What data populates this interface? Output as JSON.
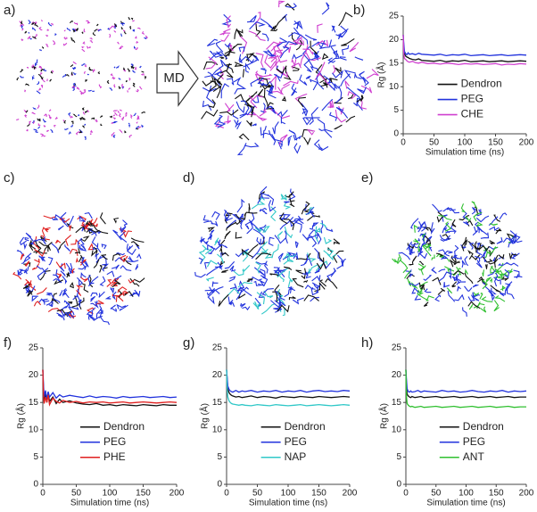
{
  "panels": [
    "a)",
    "b)",
    "c)",
    "d)",
    "e)",
    "f)",
    "g)",
    "h)"
  ],
  "arrow_label": "MD",
  "chart_data": [
    {
      "type": "line",
      "x_label": "Simulation time (ns)",
      "y_label": "Rg (Å)",
      "xlim": [
        0,
        200
      ],
      "xticks": [
        0,
        50,
        100,
        150,
        200
      ],
      "ylim": [
        0,
        25
      ],
      "yticks": [
        0,
        5,
        10,
        15,
        20,
        25
      ],
      "legend": "center right",
      "x": [
        0,
        1,
        2,
        4,
        6,
        8,
        10,
        15,
        20,
        25,
        30,
        40,
        50,
        60,
        70,
        80,
        90,
        100,
        110,
        120,
        130,
        140,
        150,
        160,
        170,
        180,
        190,
        200
      ],
      "series": [
        {
          "name": "Dendron",
          "color": "#111111",
          "values": [
            21,
            18,
            17,
            16.5,
            16.3,
            16.2,
            16,
            15.8,
            15.7,
            15.9,
            15.6,
            15.5,
            15.4,
            15.6,
            15.3,
            15.5,
            15.4,
            15.6,
            15.3,
            15.4,
            15.5,
            15.3,
            15.4,
            15.5,
            15.3,
            15.4,
            15.5,
            15.4
          ]
        },
        {
          "name": "PEG",
          "color": "#2233dd",
          "values": [
            21,
            19,
            17.5,
            17,
            16.8,
            17.2,
            16.9,
            17,
            16.8,
            17.1,
            16.9,
            16.8,
            16.7,
            16.9,
            16.6,
            16.8,
            16.7,
            16.9,
            16.6,
            16.7,
            16.8,
            16.6,
            16.7,
            16.8,
            16.6,
            16.7,
            16.8,
            16.7
          ]
        },
        {
          "name": "CHE",
          "color": "#d040d0",
          "values": [
            21,
            17,
            16,
            15.8,
            15.5,
            15.3,
            15.2,
            15.4,
            15.1,
            15,
            15.2,
            14.9,
            15,
            14.8,
            15,
            14.9,
            14.7,
            14.9,
            14.8,
            14.9,
            14.7,
            14.8,
            14.9,
            14.6,
            14.8,
            14.7,
            14.9,
            14.8
          ]
        }
      ]
    },
    {
      "type": "line",
      "x_label": "Simulation time (ns)",
      "y_label": "Rg (Å)",
      "xlim": [
        0,
        200
      ],
      "xticks": [
        0,
        50,
        100,
        150,
        200
      ],
      "ylim": [
        0,
        25
      ],
      "yticks": [
        0,
        5,
        10,
        15,
        20,
        25
      ],
      "legend": "center right",
      "x": [
        0,
        1,
        2,
        4,
        6,
        8,
        10,
        15,
        20,
        25,
        30,
        40,
        50,
        60,
        70,
        80,
        90,
        100,
        110,
        120,
        130,
        140,
        150,
        160,
        170,
        180,
        190,
        200
      ],
      "series": [
        {
          "name": "Dendron",
          "color": "#111111",
          "values": [
            21,
            17,
            15.5,
            16.5,
            15,
            16.8,
            15.2,
            16,
            14.8,
            15.6,
            15,
            15.3,
            14.9,
            14.7,
            14.6,
            14.8,
            14.5,
            14.6,
            14.4,
            14.6,
            14.5,
            14.4,
            14.6,
            14.5,
            14.4,
            14.6,
            14.5,
            14.5
          ]
        },
        {
          "name": "PEG",
          "color": "#2233dd",
          "values": [
            21,
            18,
            16,
            17.2,
            15.6,
            17,
            16,
            16.8,
            15.8,
            16.4,
            16,
            16.3,
            16.1,
            15.9,
            16.2,
            15.9,
            16.1,
            16,
            15.8,
            16.1,
            15.9,
            16,
            16.1,
            15.9,
            16,
            16.1,
            15.9,
            16
          ]
        },
        {
          "name": "PHE",
          "color": "#e02020",
          "values": [
            21,
            16,
            14.8,
            16,
            15,
            16.4,
            14.6,
            15.8,
            15.2,
            14.9,
            15.4,
            15,
            15.2,
            14.9,
            15.1,
            15,
            15.1,
            14.9,
            15,
            15.1,
            14.9,
            15,
            15.1,
            15,
            14.9,
            15,
            15.1,
            15
          ]
        }
      ]
    },
    {
      "type": "line",
      "x_label": "Simulation time (ns)",
      "y_label": "Rg (Å)",
      "xlim": [
        0,
        200
      ],
      "xticks": [
        0,
        50,
        100,
        150,
        200
      ],
      "ylim": [
        0,
        25
      ],
      "yticks": [
        0,
        5,
        10,
        15,
        20,
        25
      ],
      "legend": "center right",
      "x": [
        0,
        1,
        2,
        4,
        6,
        8,
        10,
        15,
        20,
        25,
        30,
        40,
        50,
        60,
        70,
        80,
        90,
        100,
        110,
        120,
        130,
        140,
        150,
        160,
        170,
        180,
        190,
        200
      ],
      "series": [
        {
          "name": "Dendron",
          "color": "#111111",
          "values": [
            21,
            19,
            17.5,
            16.8,
            16.5,
            16.3,
            16.2,
            16,
            16.1,
            15.9,
            16,
            16.2,
            15.9,
            16.1,
            16,
            15.8,
            16.1,
            16,
            15.9,
            16.1,
            16,
            15.9,
            16.1,
            16,
            15.9,
            16,
            16.1,
            16
          ]
        },
        {
          "name": "PEG",
          "color": "#2233dd",
          "values": [
            21,
            19.5,
            18,
            17.4,
            17.1,
            17,
            16.9,
            17.2,
            16.9,
            17.1,
            17,
            17.2,
            16.9,
            17.1,
            17,
            17.2,
            16.9,
            17.1,
            17,
            17.2,
            16.9,
            17.1,
            17.2,
            17,
            17.1,
            17,
            17.2,
            17.1
          ]
        },
        {
          "name": "NAP",
          "color": "#30c8c8",
          "values": [
            21,
            17.5,
            16,
            15.3,
            15,
            14.8,
            14.7,
            14.6,
            14.5,
            14.6,
            14.5,
            14.4,
            14.6,
            14.5,
            14.4,
            14.6,
            14.5,
            14.4,
            14.5,
            14.6,
            14.4,
            14.5,
            14.6,
            14.5,
            14.4,
            14.5,
            14.6,
            14.5
          ]
        }
      ]
    },
    {
      "type": "line",
      "x_label": "Simulation time (ns)",
      "y_label": "Rg (Å)",
      "xlim": [
        0,
        200
      ],
      "xticks": [
        0,
        50,
        100,
        150,
        200
      ],
      "ylim": [
        0,
        25
      ],
      "yticks": [
        0,
        5,
        10,
        15,
        20,
        25
      ],
      "legend": "center right",
      "x": [
        0,
        1,
        2,
        4,
        6,
        8,
        10,
        15,
        20,
        25,
        30,
        40,
        50,
        60,
        70,
        80,
        90,
        100,
        110,
        120,
        130,
        140,
        150,
        160,
        170,
        180,
        190,
        200
      ],
      "series": [
        {
          "name": "Dendron",
          "color": "#111111",
          "values": [
            21,
            18,
            16.5,
            16.2,
            16,
            15.9,
            16.1,
            15.9,
            16,
            16.1,
            15.9,
            16,
            16.1,
            15.9,
            16,
            16.1,
            15.9,
            16,
            16.1,
            15.9,
            16,
            16.1,
            15.9,
            16,
            16.1,
            15.9,
            16,
            16
          ]
        },
        {
          "name": "PEG",
          "color": "#2233dd",
          "values": [
            21,
            19,
            17.5,
            17,
            16.9,
            17.1,
            16.9,
            17,
            17.2,
            16.9,
            17.1,
            17,
            16.9,
            17.2,
            17,
            17.1,
            16.9,
            17,
            17.2,
            17,
            16.9,
            17.1,
            17,
            17.2,
            16.9,
            17.1,
            17,
            17.1
          ]
        },
        {
          "name": "ANT",
          "color": "#30c030",
          "values": [
            21,
            16,
            14.8,
            14.5,
            14.3,
            14.2,
            14.3,
            14.1,
            14.2,
            14.3,
            14.1,
            14.2,
            14.3,
            14.1,
            14.2,
            14.3,
            14.1,
            14.2,
            14.3,
            14.1,
            14.2,
            14.3,
            14.1,
            14.2,
            14.3,
            14.1,
            14.2,
            14.2
          ]
        }
      ]
    }
  ]
}
